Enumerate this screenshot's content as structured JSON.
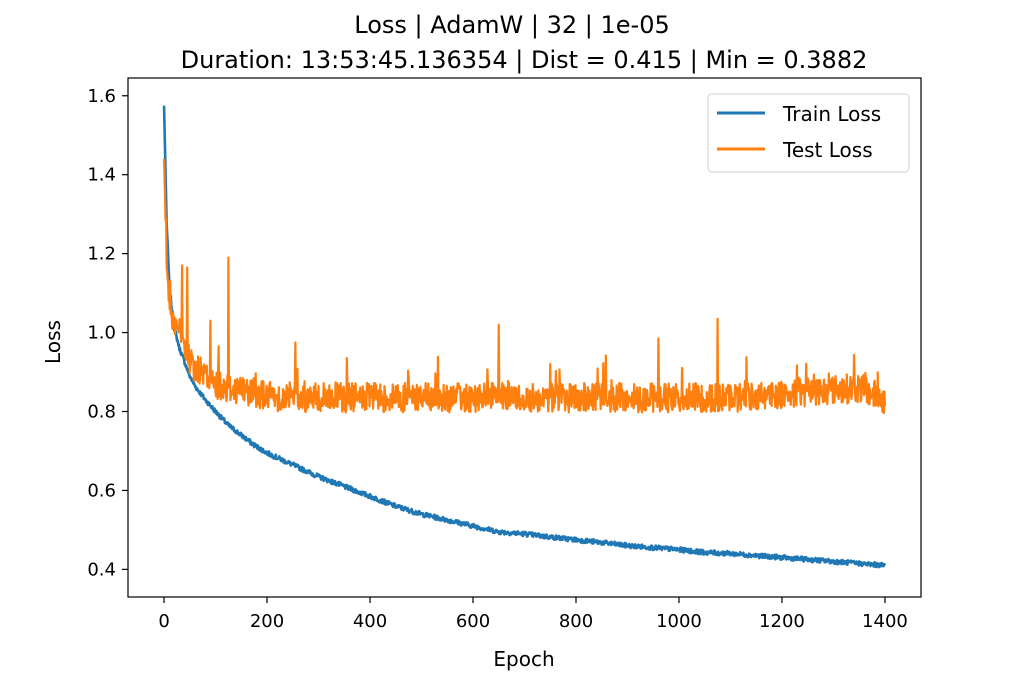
{
  "chart_data": {
    "type": "line",
    "title": "Loss | AdamW | 32 | 1e-05",
    "subtitle": "Duration: 13:53:45.136354 | Dist = 0.415 | Min = 0.3882",
    "xlabel": "Epoch",
    "ylabel": "Loss",
    "xlim": [
      -70,
      1470
    ],
    "ylim": [
      0.33,
      1.645
    ],
    "xticks": [
      0,
      200,
      400,
      600,
      800,
      1000,
      1200,
      1400
    ],
    "yticks": [
      0.4,
      0.6,
      0.8,
      1.0,
      1.2,
      1.4,
      1.6
    ],
    "xtick_labels": [
      "0",
      "200",
      "400",
      "600",
      "800",
      "1000",
      "1200",
      "1400"
    ],
    "ytick_labels": [
      "0.4",
      "0.6",
      "0.8",
      "1.0",
      "1.2",
      "1.4",
      "1.6"
    ],
    "legend_position": "top-right",
    "grid": false,
    "series": [
      {
        "name": "Train Loss",
        "color": "#1f77b4",
        "x": [
          0,
          5,
          10,
          15,
          20,
          30,
          40,
          50,
          60,
          80,
          100,
          125,
          150,
          175,
          200,
          250,
          300,
          350,
          400,
          450,
          500,
          550,
          600,
          650,
          700,
          750,
          800,
          850,
          900,
          950,
          1000,
          1050,
          1100,
          1150,
          1200,
          1250,
          1300,
          1350,
          1400
        ],
        "values": [
          1.575,
          1.28,
          1.13,
          1.06,
          1.01,
          0.96,
          0.925,
          0.89,
          0.865,
          0.83,
          0.8,
          0.765,
          0.74,
          0.715,
          0.695,
          0.665,
          0.635,
          0.61,
          0.585,
          0.56,
          0.54,
          0.525,
          0.51,
          0.495,
          0.49,
          0.482,
          0.475,
          0.468,
          0.46,
          0.455,
          0.45,
          0.443,
          0.44,
          0.435,
          0.43,
          0.425,
          0.42,
          0.415,
          0.41
        ]
      },
      {
        "name": "Test Loss",
        "color": "#ff7f0e",
        "x": [
          0,
          5,
          10,
          15,
          20,
          30,
          40,
          50,
          60,
          80,
          100,
          125,
          150,
          175,
          200,
          250,
          300,
          350,
          400,
          450,
          500,
          550,
          600,
          650,
          700,
          750,
          800,
          850,
          900,
          950,
          1000,
          1050,
          1100,
          1150,
          1200,
          1250,
          1300,
          1350,
          1400
        ],
        "values": [
          1.44,
          1.18,
          1.09,
          1.04,
          1.03,
          1.0,
          0.96,
          0.93,
          0.91,
          0.89,
          0.87,
          0.86,
          0.855,
          0.85,
          0.84,
          0.835,
          0.835,
          0.835,
          0.835,
          0.835,
          0.835,
          0.835,
          0.835,
          0.835,
          0.835,
          0.835,
          0.835,
          0.835,
          0.835,
          0.835,
          0.835,
          0.835,
          0.835,
          0.84,
          0.845,
          0.85,
          0.855,
          0.86,
          0.83
        ]
      }
    ],
    "annotations_visible_spikes": {
      "Test Loss": [
        {
          "x": 12,
          "y": 1.13
        },
        {
          "x": 35,
          "y": 1.17
        },
        {
          "x": 45,
          "y": 1.165
        },
        {
          "x": 90,
          "y": 1.03
        },
        {
          "x": 125,
          "y": 1.19
        },
        {
          "x": 255,
          "y": 0.975
        },
        {
          "x": 650,
          "y": 1.02
        },
        {
          "x": 960,
          "y": 0.985
        },
        {
          "x": 1075,
          "y": 1.035
        }
      ]
    }
  }
}
